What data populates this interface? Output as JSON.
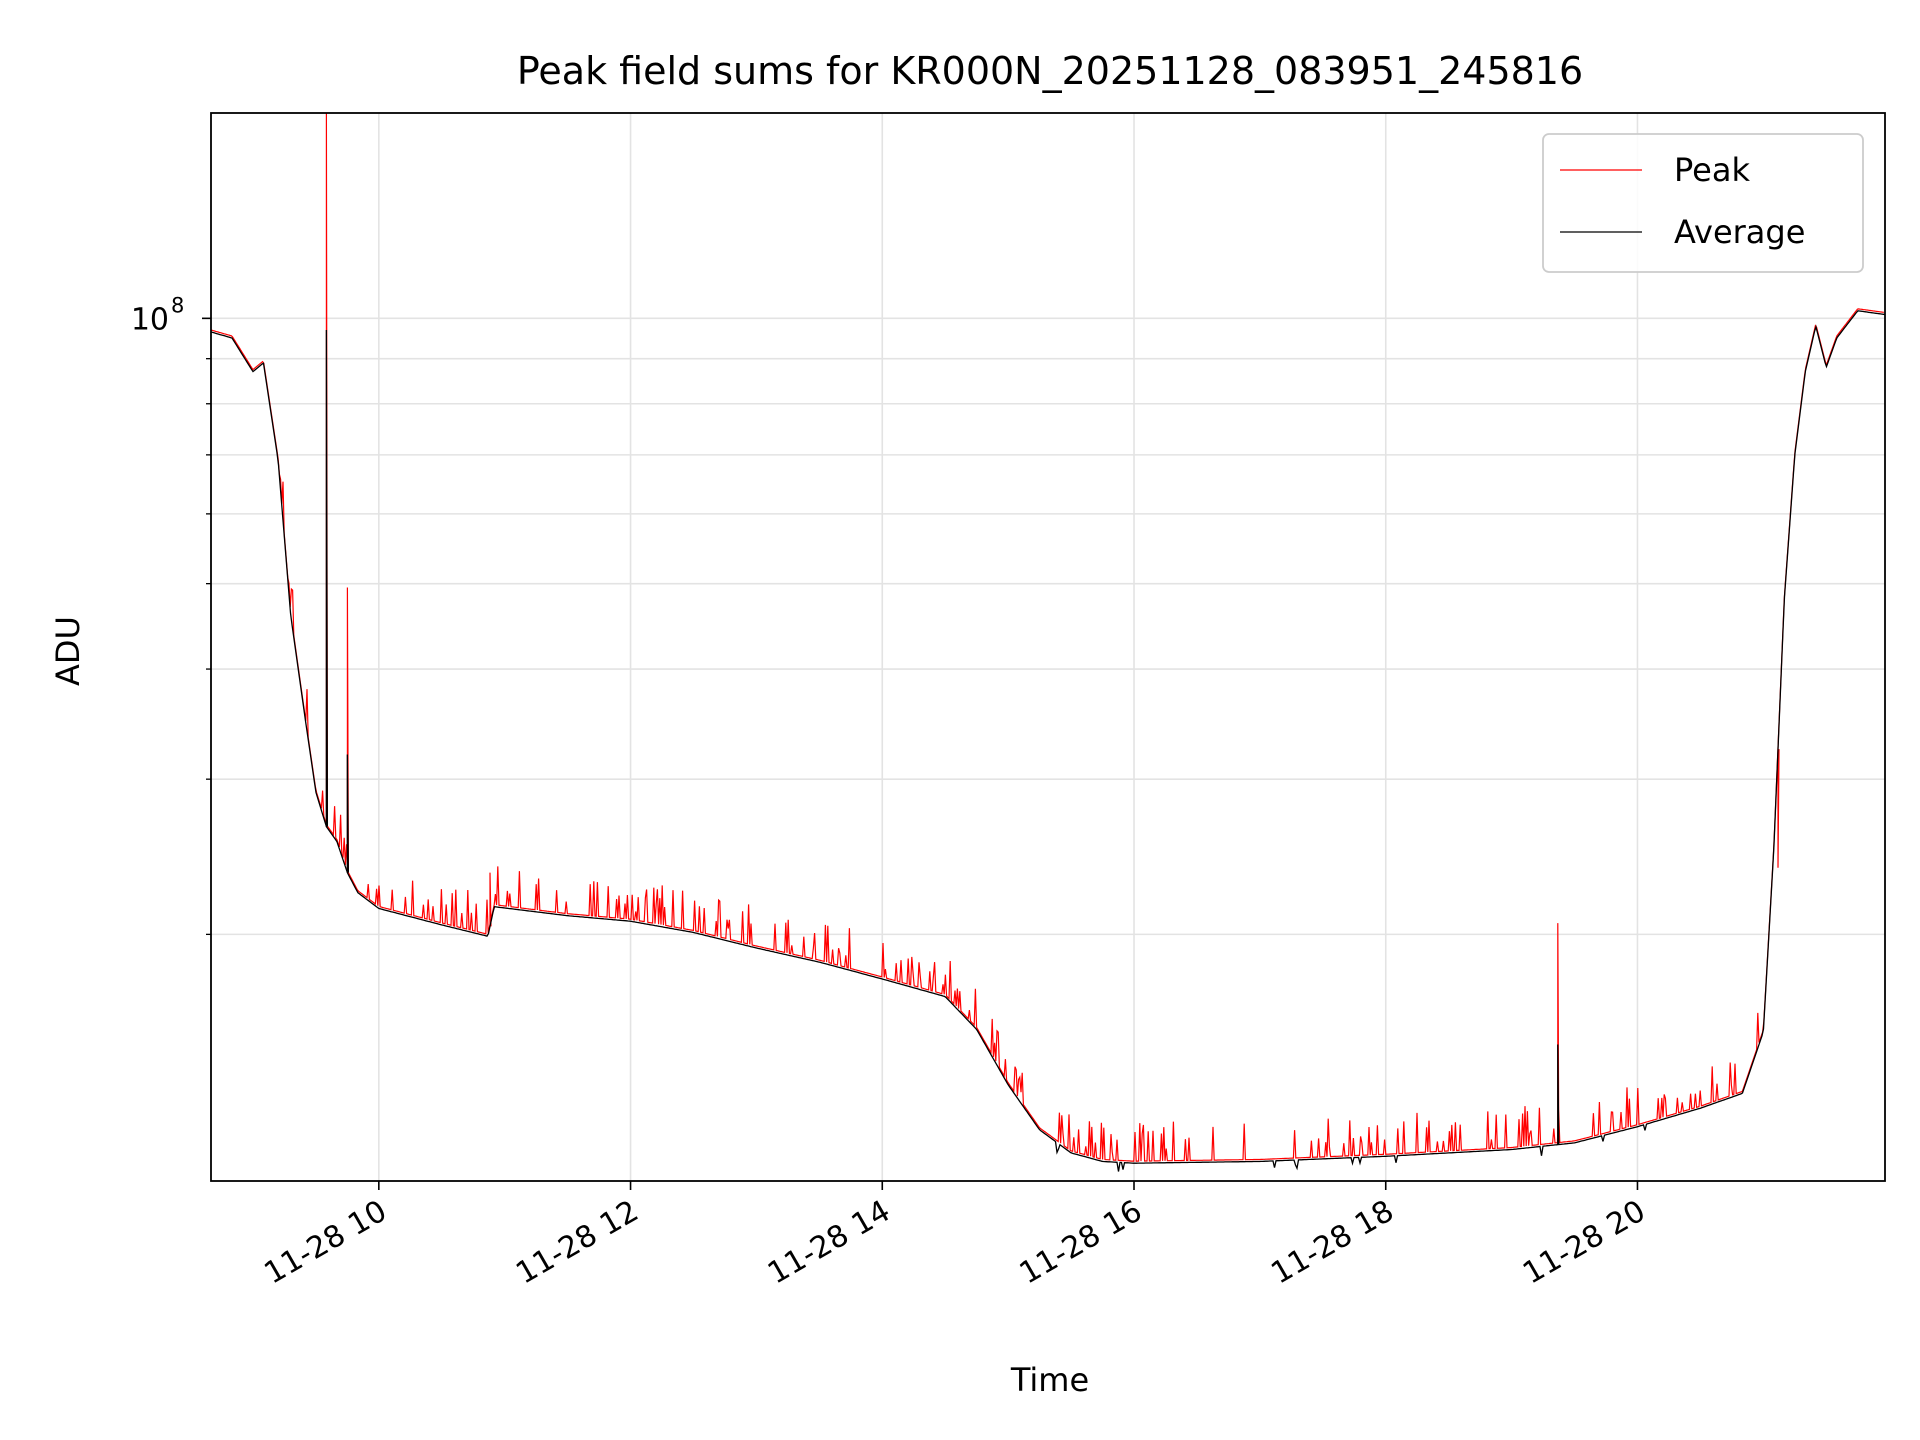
{
  "chart_data": {
    "type": "line",
    "title": "Peak field sums for KR000N_20251128_083951_245816",
    "xlabel": "Time",
    "ylabel": "ADU",
    "y_scale": "log",
    "x_range": [
      "2025-11-28T08:40",
      "2025-11-28T21:58"
    ],
    "ylim": [
      10500000,
      171000000
    ],
    "x_ticks": [
      {
        "t": "2025-11-28T10:00",
        "label": "11-28 10"
      },
      {
        "t": "2025-11-28T12:00",
        "label": "11-28 12"
      },
      {
        "t": "2025-11-28T14:00",
        "label": "11-28 14"
      },
      {
        "t": "2025-11-28T16:00",
        "label": "11-28 16"
      },
      {
        "t": "2025-11-28T18:00",
        "label": "11-28 18"
      },
      {
        "t": "2025-11-28T20:00",
        "label": "11-28 20"
      }
    ],
    "y_major_ticks": [
      {
        "value": 100000000,
        "base": "10",
        "exponent": "8"
      }
    ],
    "y_minor_ticks": [
      20000000,
      30000000,
      40000000,
      50000000,
      60000000,
      70000000,
      80000000,
      90000000
    ],
    "grid": true,
    "legend_position": "top-right",
    "series": [
      {
        "name": "Average",
        "color": "#000000",
        "x": [
          "2025-11-28T08:40",
          "2025-11-28T08:50",
          "2025-11-28T09:00",
          "2025-11-28T09:05",
          "2025-11-28T09:12",
          "2025-11-28T09:18",
          "2025-11-28T09:25",
          "2025-11-28T09:30",
          "2025-11-28T09:35",
          "2025-11-28T09:40",
          "2025-11-28T09:45",
          "2025-11-28T09:50",
          "2025-11-28T10:00",
          "2025-11-28T10:30",
          "2025-11-28T10:52",
          "2025-11-28T10:55",
          "2025-11-28T11:30",
          "2025-11-28T12:00",
          "2025-11-28T12:30",
          "2025-11-28T13:00",
          "2025-11-28T13:30",
          "2025-11-28T14:00",
          "2025-11-28T14:30",
          "2025-11-28T14:45",
          "2025-11-28T15:00",
          "2025-11-28T15:15",
          "2025-11-28T15:30",
          "2025-11-28T15:45",
          "2025-11-28T16:00",
          "2025-11-28T17:00",
          "2025-11-28T18:00",
          "2025-11-28T19:00",
          "2025-11-28T19:30",
          "2025-11-28T20:00",
          "2025-11-28T20:30",
          "2025-11-28T20:50",
          "2025-11-28T21:00",
          "2025-11-28T21:05",
          "2025-11-28T21:10",
          "2025-11-28T21:15",
          "2025-11-28T21:20",
          "2025-11-28T21:25",
          "2025-11-28T21:30",
          "2025-11-28T21:35",
          "2025-11-28T21:45",
          "2025-11-28T21:58"
        ],
        "y": [
          96500000,
          95000000,
          87000000,
          89000000,
          69000000,
          46000000,
          35000000,
          29000000,
          26500000,
          25500000,
          23500000,
          22300000,
          21400000,
          20500000,
          19900000,
          21500000,
          21000000,
          20700000,
          20100000,
          19300000,
          18600000,
          17800000,
          17000000,
          15600000,
          13500000,
          12000000,
          11300000,
          11050000,
          11000000,
          11050000,
          11200000,
          11400000,
          11600000,
          12100000,
          12700000,
          13200000,
          15500000,
          25000000,
          48000000,
          70000000,
          87000000,
          98000000,
          88000000,
          95000000,
          102000000,
          101000000
        ]
      },
      {
        "name": "Peak",
        "color": "#ff0000",
        "x": [
          "2025-11-28T09:35",
          "2025-11-28T09:45",
          "2025-11-28T10:53",
          "2025-11-28T19:22",
          "2025-11-28T21:07"
        ],
        "y": [
          171000000,
          49500000,
          23500000,
          20600000,
          23800000
        ]
      }
    ]
  }
}
